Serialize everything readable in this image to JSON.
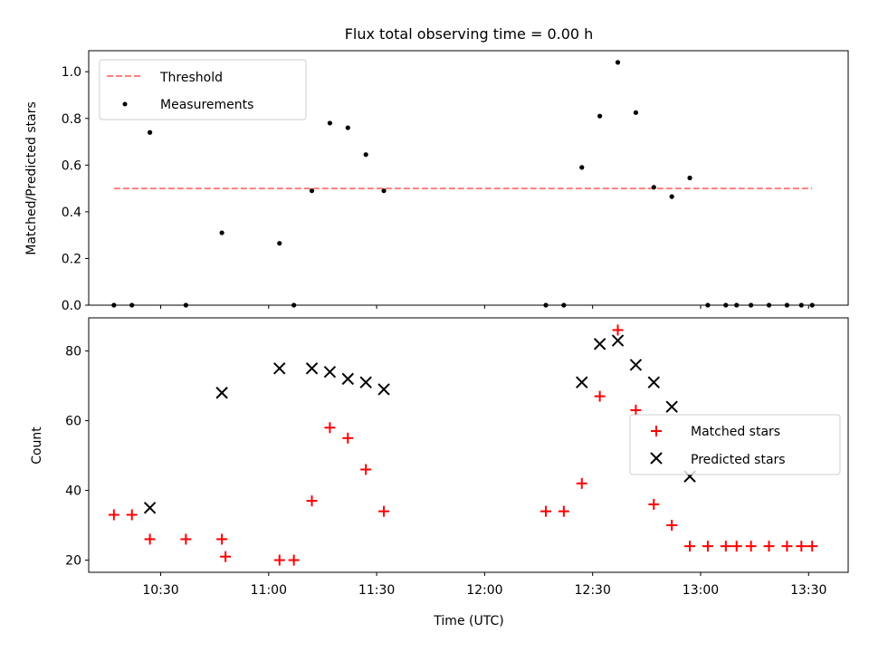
{
  "title": "Flux total observing time = 0.00 h",
  "colors": {
    "threshold": "#ff7f7f",
    "measurement": "#000000",
    "matched": "#ff0000",
    "predicted": "#000000"
  },
  "chart_data": [
    {
      "type": "scatter",
      "title": "Flux total observing time = 0.00 h",
      "xlabel": "",
      "ylabel": "Matched/Predicted stars",
      "xlim": [
        "10:10",
        "13:41"
      ],
      "ylim": [
        0,
        1.09
      ],
      "yticks": [
        "0.0",
        "0.2",
        "0.4",
        "0.6",
        "0.8",
        "1.0"
      ],
      "threshold": {
        "name": "Threshold",
        "y": 0.5,
        "x": [
          "10:17",
          "13:31"
        ]
      },
      "series": [
        {
          "name": "Measurements",
          "x": [
            "10:17",
            "10:22",
            "10:27",
            "10:37",
            "10:47",
            "11:03",
            "11:07",
            "11:12",
            "11:17",
            "11:22",
            "11:27",
            "11:32",
            "12:17",
            "12:22",
            "12:27",
            "12:32",
            "12:37",
            "12:42",
            "12:47",
            "12:52",
            "12:57",
            "13:02",
            "13:07",
            "13:10",
            "13:14",
            "13:19",
            "13:24",
            "13:28",
            "13:31"
          ],
          "y": [
            0,
            0,
            0.74,
            0,
            0.31,
            0.265,
            0,
            0.49,
            0.78,
            0.76,
            0.645,
            0.49,
            0,
            0,
            0.59,
            0.81,
            1.04,
            0.825,
            0.505,
            0.465,
            0.545,
            0,
            0,
            0,
            0,
            0,
            0,
            0,
            0
          ]
        }
      ],
      "legend": "upper-left"
    },
    {
      "type": "scatter",
      "xlabel": "Time (UTC)",
      "ylabel": "Count",
      "xlim": [
        "10:10",
        "13:41"
      ],
      "ylim": [
        16.5,
        89.5
      ],
      "yticks": [
        "20",
        "40",
        "60",
        "80"
      ],
      "xticks": [
        "10:30",
        "11:00",
        "11:30",
        "12:00",
        "12:30",
        "13:00",
        "13:30"
      ],
      "series": [
        {
          "name": "Matched stars",
          "x": [
            "10:17",
            "10:22",
            "10:27",
            "10:37",
            "10:47",
            "10:48",
            "11:03",
            "11:07",
            "11:12",
            "11:17",
            "11:22",
            "11:27",
            "11:32",
            "12:17",
            "12:22",
            "12:27",
            "12:32",
            "12:37",
            "12:42",
            "12:47",
            "12:52",
            "12:57",
            "13:02",
            "13:07",
            "13:10",
            "13:14",
            "13:19",
            "13:24",
            "13:28",
            "13:31"
          ],
          "y": [
            33,
            33,
            26,
            26,
            26,
            21,
            20,
            20,
            37,
            58,
            55,
            46,
            34,
            34,
            34,
            42,
            67,
            86,
            63,
            36,
            30,
            24,
            24,
            24,
            24,
            24,
            24,
            24,
            24,
            24
          ]
        },
        {
          "name": "Predicted stars",
          "x": [
            "10:27",
            "10:47",
            "11:03",
            "11:12",
            "11:17",
            "11:22",
            "11:27",
            "11:32",
            "12:27",
            "12:32",
            "12:37",
            "12:42",
            "12:47",
            "12:52",
            "12:57"
          ],
          "y": [
            35,
            68,
            75,
            75,
            74,
            72,
            71,
            69,
            71,
            82,
            83,
            76,
            71,
            64,
            44
          ]
        }
      ],
      "legend": "center-right"
    }
  ]
}
